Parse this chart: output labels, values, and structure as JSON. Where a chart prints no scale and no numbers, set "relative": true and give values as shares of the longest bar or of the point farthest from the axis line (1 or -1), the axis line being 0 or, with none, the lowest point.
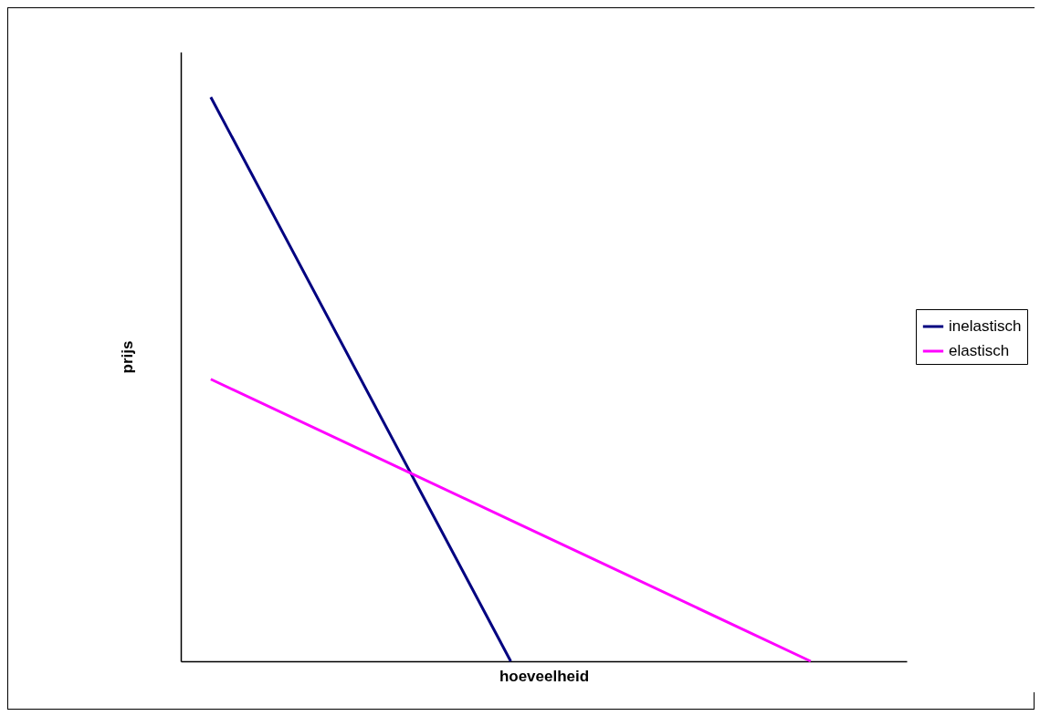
{
  "chart_data": {
    "type": "line",
    "relative": true,
    "xlabel": "hoeveelheid",
    "ylabel": "prijs",
    "categories": [
      null,
      null,
      null
    ],
    "legend": "right",
    "line_style": "solid",
    "series": [
      {
        "name": "inelastisch",
        "color": "#000080",
        "values": [
          1,
          0,
          null
        ]
      },
      {
        "name": "elastisch",
        "color": "#ff00ff",
        "values": [
          0.5,
          0.25,
          0
        ]
      }
    ]
  }
}
